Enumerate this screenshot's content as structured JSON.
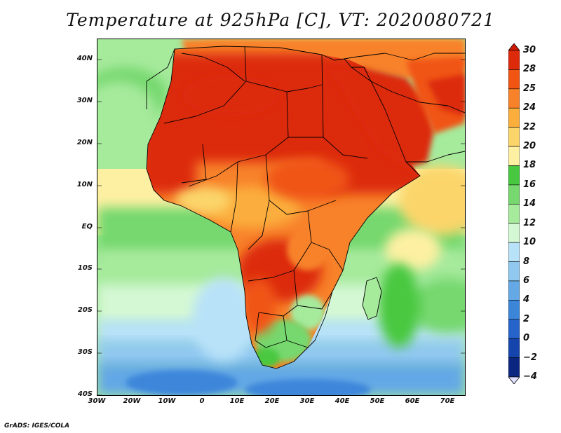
{
  "title": "Temperature at 925hPa [C], VT: 2020080721",
  "footer": "GrADS: IGES/COLA",
  "map": {
    "lat_labels": [
      "40N",
      "30N",
      "20N",
      "10N",
      "EQ",
      "10S",
      "20S",
      "30S",
      "40S"
    ],
    "lon_labels": [
      "30W",
      "20W",
      "10W",
      "0",
      "10E",
      "20E",
      "30E",
      "40E",
      "50E",
      "60E",
      "70E"
    ],
    "extent": {
      "lon_min": -30,
      "lon_max": 75,
      "lat_min": -40,
      "lat_max": 45
    }
  },
  "colorbar": {
    "levels": [
      "30",
      "28",
      "25",
      "24",
      "22",
      "20",
      "18",
      "16",
      "14",
      "12",
      "10",
      "8",
      "6",
      "4",
      "2",
      "0",
      "−2",
      "−4"
    ],
    "colors": [
      "#dc2a0a",
      "#f05514",
      "#f8822a",
      "#fbae3c",
      "#fbd56a",
      "#fdf0a2",
      "#48c840",
      "#76d86e",
      "#a6ea9c",
      "#d4f8d4",
      "#b8e2f8",
      "#90c8f0",
      "#64a8e6",
      "#3c86da",
      "#2664cc",
      "#1444ac",
      "#0a2680"
    ],
    "top_color": "#cf1a00",
    "bottom_color": "#e0e0ff"
  }
}
